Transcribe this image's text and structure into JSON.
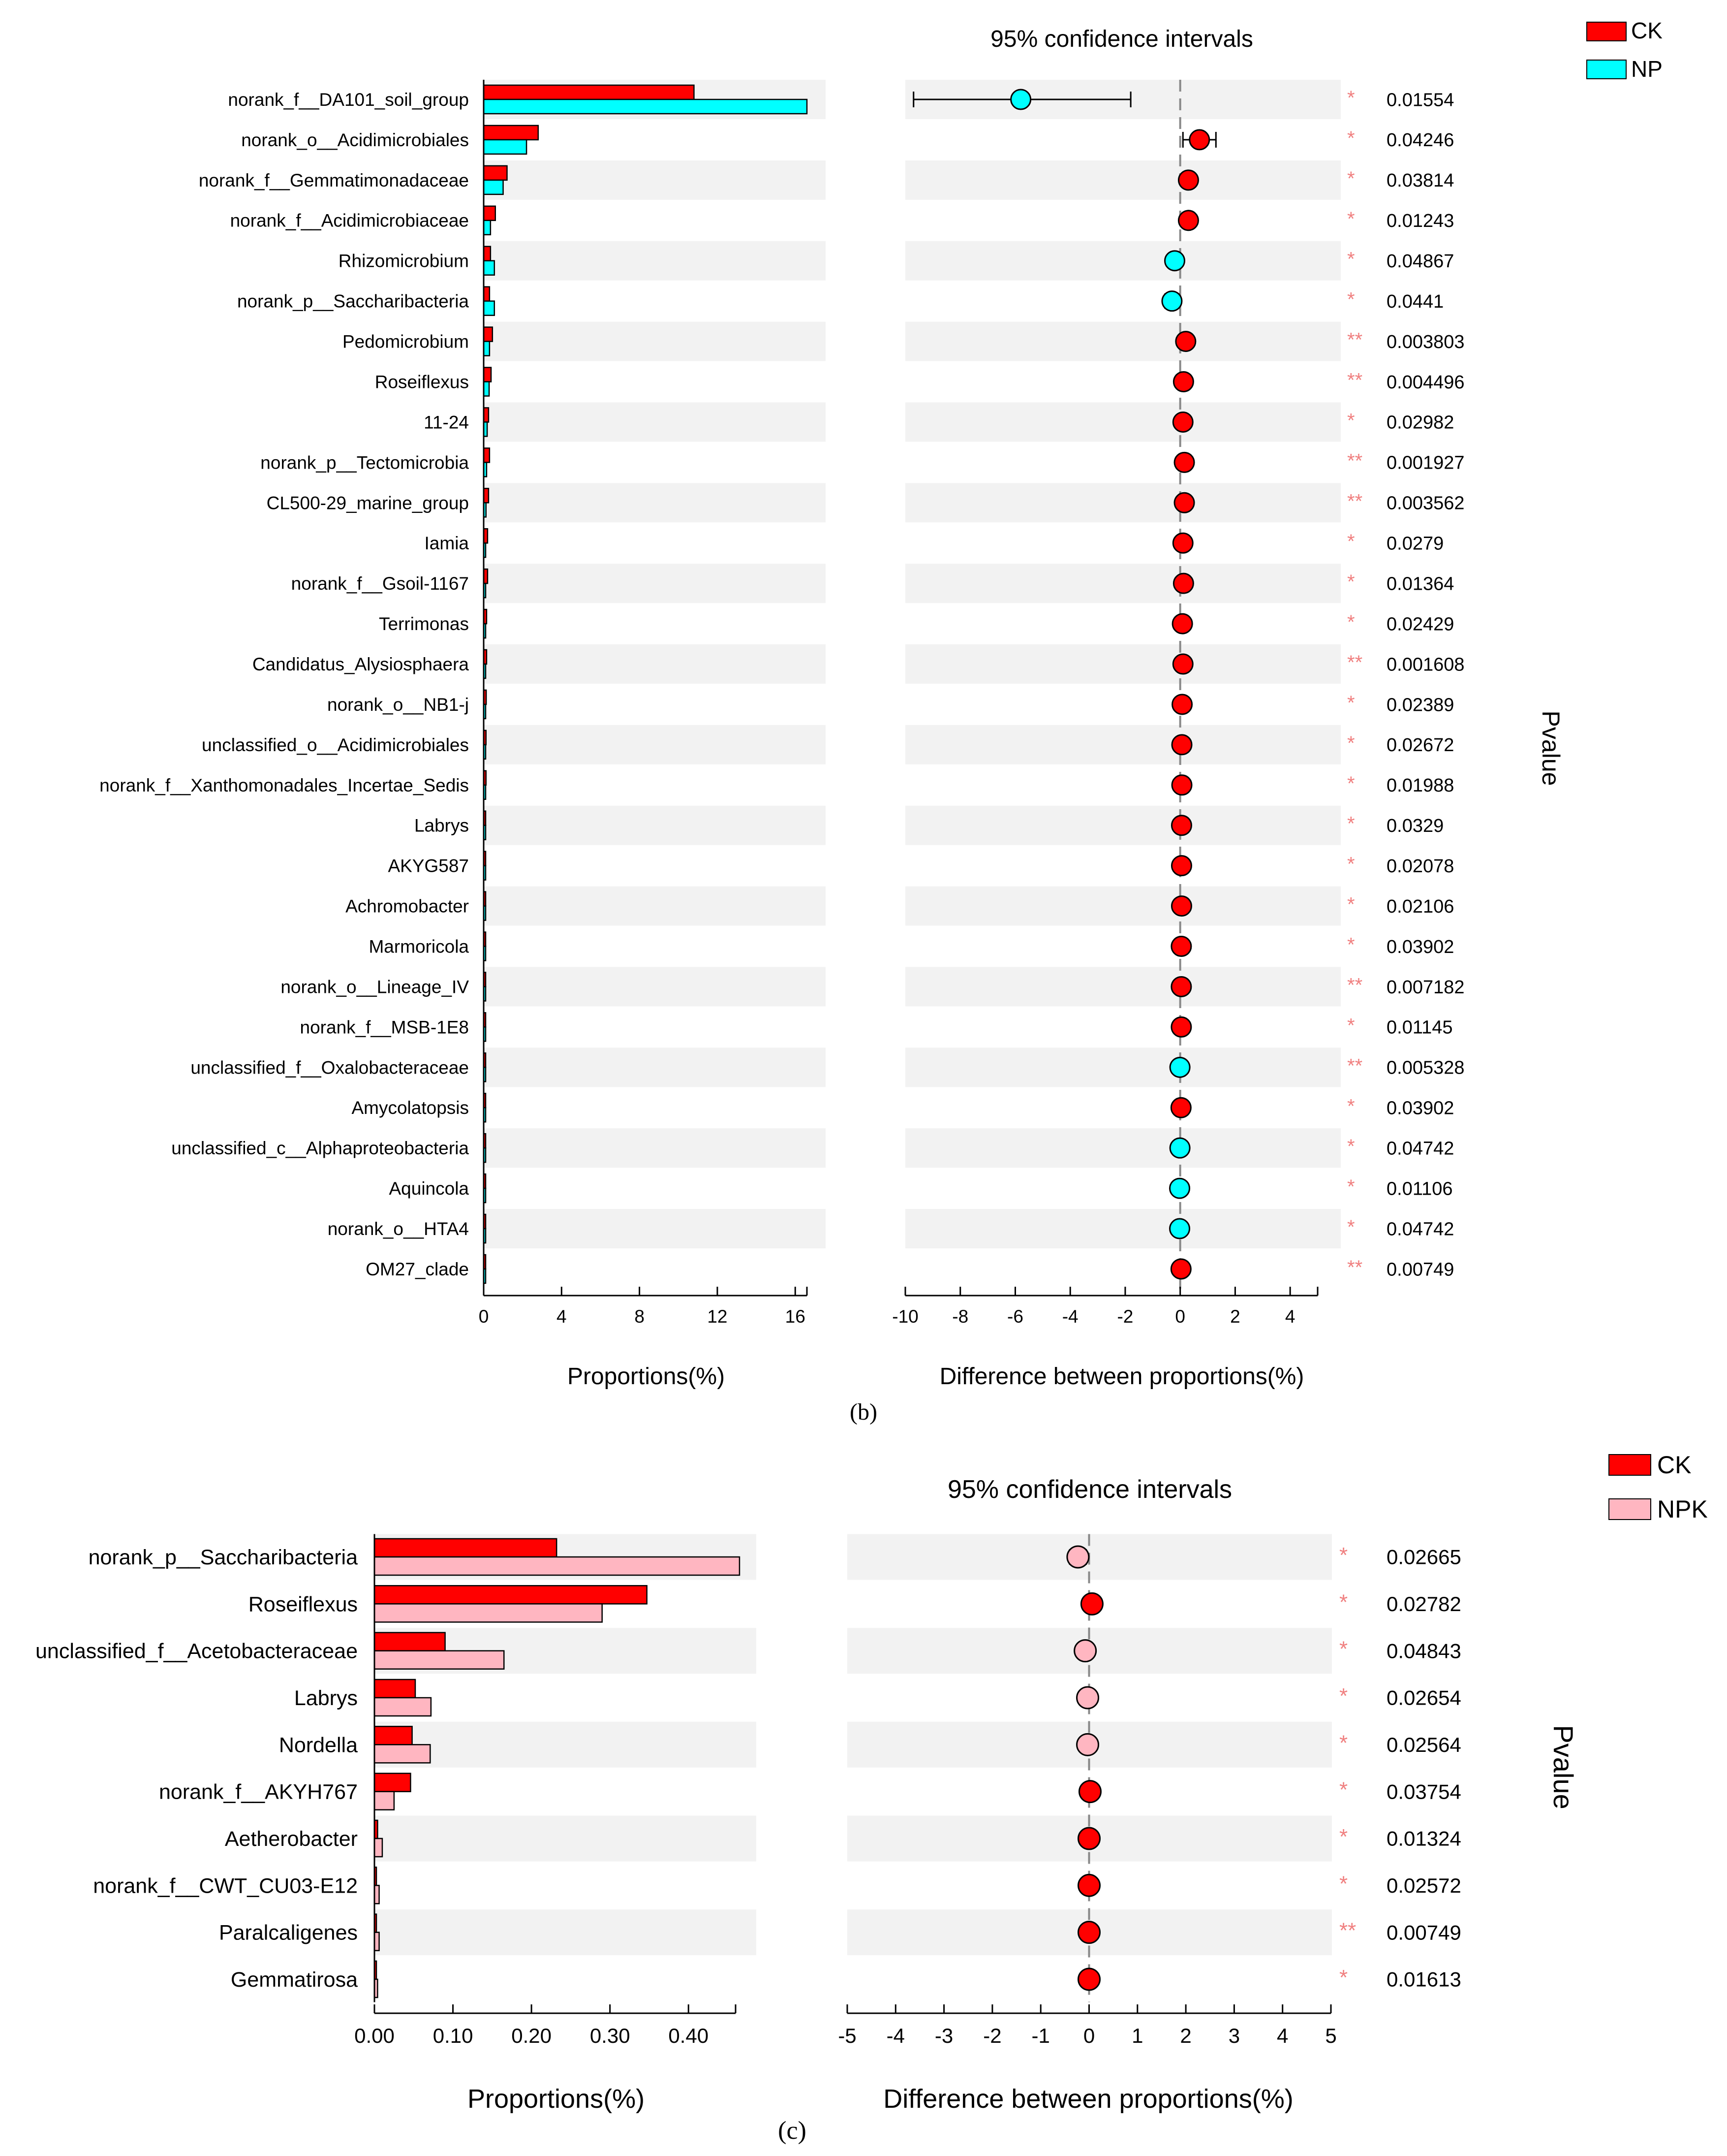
{
  "chart_data": [
    {
      "panel_label": "(b)",
      "type": "bar",
      "subtype": "extended_error_bar",
      "legend": [
        {
          "name": "CK",
          "color": "#ff0000"
        },
        {
          "name": "NP",
          "color": "#00ffff"
        }
      ],
      "ci_title": "95% confidence intervals",
      "pvalue_label": "Pvalue",
      "bar_xlabel": "Proportions(%)",
      "diff_xlabel": "Difference between proportions(%)",
      "bar_xlim": [
        0,
        16.6
      ],
      "bar_ticks": [
        "0",
        "4",
        "8",
        "12",
        "16"
      ],
      "diff_xlim": [
        -10,
        5
      ],
      "diff_ticks": [
        "-10",
        "-8",
        "-6",
        "-4",
        "-2",
        "0",
        "2",
        "4"
      ],
      "categories": [
        "norank_f__DA101_soil_group",
        "norank_o__Acidimicrobiales",
        "norank_f__Gemmatimonadaceae",
        "norank_f__Acidimicrobiaceae",
        "Rhizomicrobium",
        "norank_p__Saccharibacteria",
        "Pedomicrobium",
        "Roseiflexus",
        "11-24",
        "norank_p__Tectomicrobia",
        "CL500-29_marine_group",
        "Iamia",
        "norank_f__Gsoil-1167",
        "Terrimonas",
        "Candidatus_Alysiosphaera",
        "norank_o__NB1-j",
        "unclassified_o__Acidimicrobiales",
        "norank_f__Xanthomonadales_Incertae_Sedis",
        "Labrys",
        "AKYG587",
        "Achromobacter",
        "Marmoricola",
        "norank_o__Lineage_IV",
        "norank_f__MSB-1E8",
        "unclassified_f__Oxalobacteraceae",
        "Amycolatopsis",
        "unclassified_c__Alphaproteobacteria",
        "Aquincola",
        "norank_o__HTA4",
        "OM27_clade"
      ],
      "series": [
        {
          "name": "CK",
          "values": [
            10.8,
            2.8,
            1.2,
            0.6,
            0.35,
            0.3,
            0.45,
            0.38,
            0.25,
            0.3,
            0.25,
            0.2,
            0.2,
            0.15,
            0.15,
            0.13,
            0.12,
            0.12,
            0.1,
            0.08,
            0.08,
            0.07,
            0.07,
            0.06,
            0.05,
            0.05,
            0.05,
            0.04,
            0.04,
            0.05
          ]
        },
        {
          "name": "NP",
          "values": [
            16.6,
            2.2,
            1.0,
            0.35,
            0.55,
            0.55,
            0.3,
            0.28,
            0.18,
            0.15,
            0.12,
            0.1,
            0.08,
            0.07,
            0.06,
            0.06,
            0.06,
            0.05,
            0.04,
            0.03,
            0.03,
            0.03,
            0.03,
            0.02,
            0.06,
            0.02,
            0.06,
            0.06,
            0.06,
            0.02
          ]
        }
      ],
      "diff": [
        -5.8,
        0.7,
        0.3,
        0.3,
        -0.2,
        -0.3,
        0.2,
        0.12,
        0.1,
        0.15,
        0.15,
        0.1,
        0.12,
        0.08,
        0.1,
        0.07,
        0.06,
        0.06,
        0.05,
        0.05,
        0.05,
        0.04,
        0.04,
        0.04,
        -0.01,
        0.03,
        -0.01,
        -0.02,
        -0.02,
        0.03
      ],
      "ci_low": [
        -9.7,
        0.1,
        0.1,
        0.15,
        -0.35,
        -0.55,
        0.05,
        0.02,
        0.02,
        0.05,
        0.05,
        0.02,
        0.03,
        0.02,
        0.03,
        0.02,
        0.02,
        0.02,
        0.01,
        0.01,
        0.01,
        0.01,
        0.01,
        0.01,
        -0.03,
        0.01,
        -0.03,
        -0.04,
        -0.04,
        0.01
      ],
      "ci_high": [
        -1.8,
        1.3,
        0.5,
        0.45,
        -0.05,
        -0.05,
        0.35,
        0.22,
        0.18,
        0.25,
        0.25,
        0.18,
        0.21,
        0.14,
        0.17,
        0.12,
        0.1,
        0.1,
        0.09,
        0.09,
        0.09,
        0.07,
        0.07,
        0.07,
        0.01,
        0.05,
        0.01,
        0.0,
        0.0,
        0.05
      ],
      "pvalues": [
        "0.01554",
        "0.04246",
        "0.03814",
        "0.01243",
        "0.04867",
        "0.0441",
        "0.003803",
        "0.004496",
        "0.02982",
        "0.001927",
        "0.003562",
        "0.0279",
        "0.01364",
        "0.02429",
        "0.001608",
        "0.02389",
        "0.02672",
        "0.01988",
        "0.0329",
        "0.02078",
        "0.02106",
        "0.03902",
        "0.007182",
        "0.01145",
        "0.005328",
        "0.03902",
        "0.04742",
        "0.01106",
        "0.04742",
        "0.00749"
      ],
      "stars": [
        "*",
        "*",
        "*",
        "*",
        "*",
        "*",
        "**",
        "**",
        "*",
        "**",
        "**",
        "*",
        "*",
        "*",
        "**",
        "*",
        "*",
        "*",
        "*",
        "*",
        "*",
        "*",
        "**",
        "*",
        "**",
        "*",
        "*",
        "*",
        "*",
        "**"
      ]
    },
    {
      "panel_label": "(c)",
      "type": "bar",
      "subtype": "extended_error_bar",
      "legend": [
        {
          "name": "CK",
          "color": "#ff0000"
        },
        {
          "name": "NPK",
          "color": "#ffb6c1"
        }
      ],
      "ci_title": "95% confidence intervals",
      "pvalue_label": "Pvalue",
      "bar_xlabel": "Proportions(%)",
      "diff_xlabel": "Difference between proportions(%)",
      "bar_xlim": [
        0,
        0.46
      ],
      "bar_ticks": [
        "0.00",
        "0.10",
        "0.20",
        "0.30",
        "0.40"
      ],
      "diff_xlim": [
        -5,
        5
      ],
      "diff_ticks": [
        "-5",
        "-4",
        "-3",
        "-2",
        "-1",
        "0",
        "1",
        "2",
        "3",
        "4",
        "5"
      ],
      "categories": [
        "norank_p__Saccharibacteria",
        "Roseiflexus",
        "unclassified_f__Acetobacteraceae",
        "Labrys",
        "Nordella",
        "norank_f__AKYH767",
        "Aetherobacter",
        "norank_f__CWT_CU03-E12",
        "Paralcaligenes",
        "Gemmatirosa"
      ],
      "series": [
        {
          "name": "CK",
          "values": [
            0.232,
            0.347,
            0.09,
            0.052,
            0.048,
            0.046,
            0.004,
            0.002,
            0.002,
            0.002
          ]
        },
        {
          "name": "NPK",
          "values": [
            0.465,
            0.29,
            0.165,
            0.072,
            0.071,
            0.025,
            0.01,
            0.006,
            0.006,
            0.004
          ]
        }
      ],
      "diff": [
        -0.23,
        0.06,
        -0.08,
        -0.03,
        -0.03,
        0.02,
        0.0,
        0.0,
        0.0,
        0.0
      ],
      "ci_low": [
        -0.4,
        -0.05,
        -0.18,
        -0.09,
        -0.09,
        -0.02,
        -0.02,
        -0.01,
        -0.01,
        -0.01
      ],
      "ci_high": [
        -0.06,
        0.17,
        0.02,
        0.03,
        0.03,
        0.06,
        0.02,
        0.01,
        0.01,
        0.01
      ],
      "pvalues": [
        "0.02665",
        "0.02782",
        "0.04843",
        "0.02654",
        "0.02564",
        "0.03754",
        "0.01324",
        "0.02572",
        "0.00749",
        "0.01613"
      ],
      "stars": [
        "*",
        "*",
        "*",
        "*",
        "*",
        "*",
        "*",
        "*",
        "**",
        "*"
      ]
    }
  ]
}
